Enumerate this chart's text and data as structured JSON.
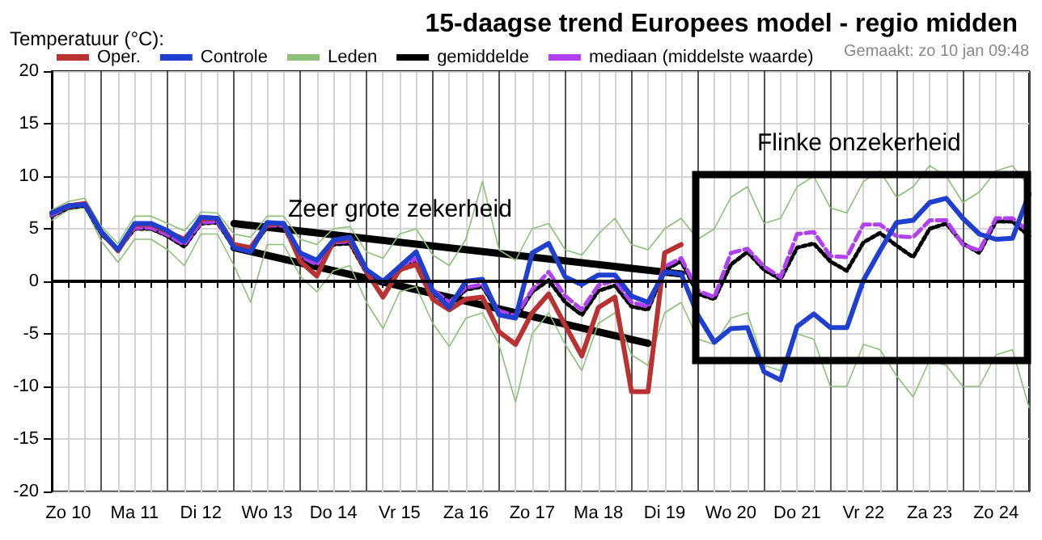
{
  "chart_data": {
    "type": "line",
    "title": "15-daagse trend Europees model - regio midden",
    "ylabel": "Temperatuur (°C):",
    "categories": [
      null,
      "Zo 10",
      null,
      null,
      null,
      "Ma 11",
      null,
      null,
      null,
      "Di 12",
      null,
      null,
      null,
      "Wo 13",
      null,
      null,
      null,
      "Do 14",
      null,
      null,
      null,
      "Vr 15",
      null,
      null,
      null,
      "Za 16",
      null,
      null,
      null,
      "Zo 17",
      null,
      null,
      null,
      "Ma 18",
      null,
      null,
      null,
      "Di 19",
      null,
      null,
      null,
      "Wo 20",
      null,
      null,
      null,
      "Do 21",
      null,
      null,
      null,
      "Vr 22",
      null,
      null,
      null,
      "Za 23",
      null,
      null,
      null,
      "Zo 24",
      null,
      null
    ],
    "series": [
      {
        "name": "Leden",
        "color": "#8cc079",
        "line_style": "solid",
        "values": [
          6.8,
          7.6,
          7.9,
          5.2,
          3.6,
          6.2,
          6.2,
          5.5,
          4.8,
          6.6,
          6.5,
          4.5,
          4.2,
          6.2,
          6.2,
          4.0,
          3.5,
          5.0,
          5.2,
          2.8,
          2.2,
          4.5,
          5.0,
          2.5,
          1.5,
          4.0,
          9.5,
          3.0,
          2.0,
          5.0,
          5.5,
          3.0,
          2.5,
          4.5,
          6.0,
          3.5,
          3.0,
          5.0,
          6.0,
          4.0,
          5.0,
          8.0,
          9.0,
          5.5,
          6.0,
          9.0,
          10.0,
          7.0,
          6.5,
          9.5,
          10.5,
          8.0,
          9.0,
          11.0,
          10.0,
          7.5,
          8.5,
          10.5,
          11.0,
          9.0
        ]
      },
      {
        "color": "#8cc079",
        "line_style": "solid",
        "values": [
          5.8,
          6.8,
          7.0,
          3.8,
          1.8,
          4.0,
          4.0,
          3.0,
          1.5,
          4.5,
          4.5,
          1.5,
          -2.0,
          3.5,
          3.5,
          0.5,
          -1.0,
          1.0,
          1.5,
          -2.0,
          -4.5,
          -1.0,
          -0.5,
          -4.0,
          -6.2,
          -3.5,
          -3.0,
          -6.0,
          -11.5,
          -5.0,
          -3.0,
          -6.0,
          -8.5,
          -4.0,
          -3.0,
          -7.0,
          -8.0,
          -3.0,
          -2.0,
          -5.5,
          -6.0,
          -3.5,
          -3.0,
          -8.0,
          -8.5,
          -5.0,
          -5.5,
          -10.0,
          -10.0,
          -6.0,
          -6.5,
          -9.0,
          -11.0,
          -7.5,
          -8.0,
          -10.0,
          -10.0,
          -7.0,
          -6.5,
          -12.0
        ]
      },
      {
        "name": "gemiddelde",
        "color": "#000000",
        "line_style": "dotted",
        "values": [
          6.2,
          7.0,
          7.2,
          4.5,
          3.0,
          5.0,
          5.0,
          4.3,
          3.3,
          5.5,
          5.6,
          3.2,
          3.0,
          5.2,
          5.2,
          2.2,
          1.5,
          3.5,
          3.6,
          0.8,
          -0.2,
          1.0,
          2.0,
          -1.0,
          -2.2,
          -0.8,
          -0.5,
          -3.0,
          -3.5,
          -1.0,
          0.1,
          -2.0,
          -3.2,
          -0.9,
          -0.4,
          -2.4,
          -2.7,
          1.1,
          1.9,
          -1.2,
          -1.7,
          1.6,
          2.8,
          1.1,
          0.2,
          3.2,
          3.6,
          1.9,
          1.0,
          3.7,
          4.6,
          3.4,
          2.3,
          5.0,
          5.5,
          3.6,
          2.7,
          5.7,
          5.7,
          4.3
        ]
      },
      {
        "name": "mediaan (middelste waarde)",
        "color": "#b040f0",
        "line_style": "dashed",
        "values": [
          6.3,
          7.1,
          7.3,
          4.6,
          3.0,
          5.1,
          5.1,
          4.4,
          3.5,
          5.6,
          5.7,
          3.3,
          3.1,
          5.3,
          5.3,
          2.4,
          1.6,
          3.7,
          3.8,
          1.0,
          0,
          1.2,
          2.2,
          -0.8,
          -2.0,
          -0.6,
          -0.3,
          -2.8,
          -3.3,
          -0.8,
          0.9,
          -1.4,
          -2.7,
          -0.4,
          0.1,
          -2.0,
          -2.4,
          1.4,
          2.2,
          -0.9,
          -1.5,
          2.7,
          3.1,
          1.4,
          0.4,
          4.5,
          4.7,
          2.4,
          2.3,
          5.4,
          5.4,
          4.3,
          4.2,
          5.8,
          5.8,
          3.5,
          2.9,
          6.0,
          6.0,
          4.7
        ]
      },
      {
        "name": "Oper.",
        "color": "#b83232",
        "line_style": "solid",
        "values": [
          6.5,
          7.2,
          7.4,
          4.7,
          2.9,
          5.4,
          5.4,
          4.7,
          4.0,
          5.9,
          6.0,
          3.5,
          3.2,
          5.4,
          5.5,
          1.9,
          0.5,
          3.8,
          4.0,
          0.9,
          -1.5,
          1.1,
          1.6,
          -1.7,
          -2.7,
          -1.7,
          -1.5,
          -4.8,
          -6.0,
          -3.0,
          -1.2,
          -4.2,
          -7.1,
          -2.5,
          -1.5,
          -10.5,
          -10.5,
          2.7,
          3.5,
          null,
          null,
          null,
          null,
          null,
          null,
          null,
          null,
          null,
          null,
          null,
          null,
          null,
          null,
          null,
          null,
          null,
          null,
          null,
          null,
          null
        ]
      },
      {
        "name": "Controle",
        "color": "#1f3fcf",
        "line_style": "solid",
        "values": [
          6.5,
          7.2,
          7.3,
          4.7,
          3.0,
          5.5,
          5.5,
          4.8,
          3.8,
          6.1,
          6.0,
          3.2,
          2.8,
          5.6,
          5.5,
          2.7,
          2.0,
          3.9,
          4.2,
          1.1,
          0,
          1.4,
          2.8,
          -0.9,
          -2.5,
          0,
          0.2,
          -3.2,
          -3.5,
          2.7,
          3.6,
          0.4,
          -0.3,
          0.6,
          0.6,
          -1.4,
          -2.0,
          0.9,
          0.7,
          -3.2,
          -5.8,
          -4.5,
          -4.4,
          -8.6,
          -9.4,
          -4.3,
          -3.1,
          -4.4,
          -4.4,
          0.1,
          2.9,
          5.6,
          5.8,
          7.5,
          7.9,
          6.0,
          4.5,
          4.0,
          4.1,
          8.3
        ]
      },
      {
        "color": "#000000",
        "line_style": "solid",
        "values": [
          null,
          null,
          null,
          null,
          null,
          null,
          null,
          null,
          null,
          null,
          null,
          5.5,
          null,
          null,
          null,
          null,
          null,
          null,
          null,
          null,
          null,
          null,
          null,
          null,
          null,
          null,
          null,
          null,
          null,
          null,
          null,
          null,
          null,
          null,
          null,
          null,
          null,
          null,
          0.7,
          null,
          null,
          null,
          null,
          null,
          null,
          null,
          null,
          null,
          null,
          null,
          null,
          null,
          null,
          null,
          null,
          null,
          null,
          null,
          null,
          null
        ]
      },
      {
        "color": "#000000",
        "line_style": "solid",
        "values": [
          null,
          null,
          null,
          null,
          null,
          null,
          null,
          null,
          null,
          null,
          null,
          3.2,
          null,
          null,
          null,
          null,
          null,
          null,
          null,
          null,
          null,
          null,
          null,
          null,
          null,
          null,
          null,
          null,
          null,
          null,
          null,
          null,
          null,
          null,
          null,
          null,
          -5.9,
          null,
          null,
          null,
          null,
          null,
          null,
          null,
          null,
          null,
          null,
          null,
          null,
          null,
          null,
          null,
          null,
          null,
          null,
          null,
          null,
          null,
          null,
          null
        ]
      }
    ],
    "ylim": [
      -20,
      20
    ],
    "yticks": [
      -20,
      -15,
      -10,
      -5,
      0,
      5,
      10,
      15,
      20
    ],
    "ref_lines": [
      {
        "axis": "y",
        "value": 0,
        "color": "#000000"
      }
    ],
    "annotations": [
      "Gemaakt: zo 10 jan 09:48",
      "Zeer grote zekerheid",
      "Flinke onzekerheid"
    ],
    "grid": true,
    "legend": "top",
    "marker": "none"
  }
}
